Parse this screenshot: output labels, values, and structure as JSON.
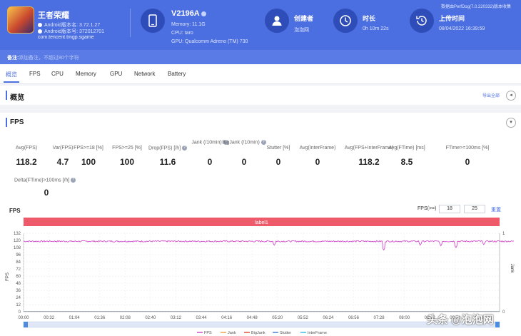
{
  "app": {
    "name": "王者荣耀",
    "version_line": "Android版本名: 3.72.1.27",
    "code_line": "Android版本号: 372012701",
    "package": "com.tencent.tmgp.sgame"
  },
  "device": {
    "name": "V2196A",
    "memory": "Memory: 11.1G",
    "cpu": "CPU: taro",
    "gpu": "GPU: Qualcomm Adreno (TM) 730"
  },
  "stats": {
    "creator_label": "创建者",
    "creator_value": "泡泡网",
    "duration_label": "时长",
    "duration_value": "0h 10m 22s",
    "upload_label": "上传时间",
    "upload_value": "08/04/2022 16:39:59"
  },
  "source_note": "数据由PerfDog(7.0.220332)版本收集",
  "remark": {
    "label": "备注:",
    "placeholder": "添加备注，不超过80个字符"
  },
  "tabs": [
    "概览",
    "FPS",
    "CPU",
    "Memory",
    "GPU",
    "Network",
    "Battery"
  ],
  "overview": {
    "title": "概览",
    "export": "导出全部",
    "toggle_icon": "◂"
  },
  "fps_section": {
    "title": "FPS",
    "toggle_icon": "▾"
  },
  "metrics": [
    {
      "label": "Avg(FPS)",
      "value": "118.2",
      "help": false
    },
    {
      "label": "Var(FPS)",
      "value": "4.7",
      "help": false
    },
    {
      "label": "FPS>=18 [%]",
      "value": "100",
      "help": false
    },
    {
      "label": "FPS>=25 [%]",
      "value": "100",
      "help": false
    },
    {
      "label": "Drop(FPS) [/h]",
      "value": "11.6",
      "help": true
    },
    {
      "label": "Jank (/10min)",
      "value": "0",
      "help": true
    },
    {
      "label": "BigJank (/10min)",
      "value": "0",
      "help": true
    },
    {
      "label": "Stutter [%]",
      "value": "0",
      "help": false
    },
    {
      "label": "Avg(InterFrame)",
      "value": "0",
      "help": false
    },
    {
      "label": "Avg(FPS+InterFrame)",
      "value": "118.2",
      "help": false
    },
    {
      "label": "Avg(FTime) [ms]",
      "value": "8.5",
      "help": false
    },
    {
      "label": "FTime>=100ms [%]",
      "value": "0",
      "help": false
    }
  ],
  "delta_metric": {
    "label": "Delta(FTime)>100ms [/h]",
    "value": "0"
  },
  "chart_controls": {
    "fps_ge_label": "FPS(>=)",
    "threshold1": "18",
    "threshold2": "25",
    "reset": "重置"
  },
  "chart_data": {
    "type": "line",
    "title": "FPS",
    "band_label": "label1",
    "ylabel": "FPS",
    "y2label": "Jank",
    "ylim": [
      0,
      132
    ],
    "yticks": [
      0,
      12,
      24,
      36,
      48,
      60,
      72,
      84,
      96,
      108,
      120,
      132
    ],
    "y2ticks": [
      0,
      1
    ],
    "xlim": [
      "00:00",
      "10:00"
    ],
    "xticks": [
      "00:00",
      "00:32",
      "01:04",
      "01:36",
      "02:08",
      "02:40",
      "03:12",
      "03:44",
      "04:16",
      "04:48",
      "05:20",
      "05:52",
      "06:24",
      "06:56",
      "07:28",
      "08:00",
      "08:32",
      "09:04",
      "09:36"
    ],
    "grid": true,
    "legend_position": "bottom",
    "series": [
      {
        "name": "FPS",
        "color": "#d04ecb",
        "baseline": 118.5,
        "dips": [
          {
            "x": "05:16",
            "value": 112
          },
          {
            "x": "07:34",
            "value": 104
          },
          {
            "x": "08:20",
            "value": 112
          },
          {
            "x": "08:46",
            "value": 111
          },
          {
            "x": "09:05",
            "value": 108
          },
          {
            "x": "09:40",
            "value": 113
          }
        ]
      },
      {
        "name": "Jank",
        "color": "#f0a24a"
      },
      {
        "name": "BigJank",
        "color": "#e0503c"
      },
      {
        "name": "Stutter",
        "color": "#4a7fd8"
      },
      {
        "name": "InterFrame",
        "color": "#3ec1e0"
      }
    ]
  },
  "watermark": "头条 @泡泡网"
}
